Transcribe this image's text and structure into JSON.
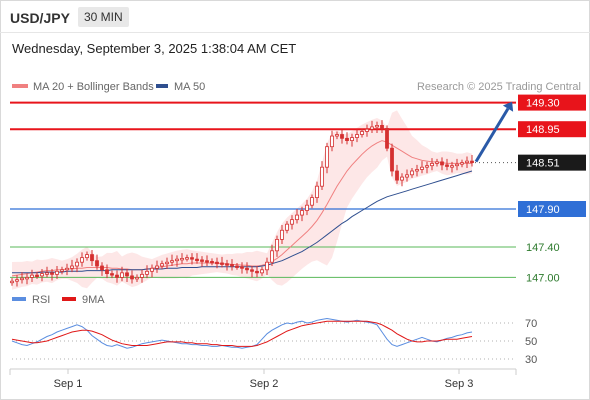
{
  "header": {
    "pair": "USD/JPY",
    "timeframe": "30 MIN",
    "datetime": "Wednesday, September 3, 2025 1:38:04 AM CET"
  },
  "legend": {
    "ma20_label": "MA 20 + Bollinger Bands",
    "ma50_label": "MA 50",
    "credit": "Research © 2025 Trading Central",
    "rsi_label": "RSI",
    "rsi_ma_label": "9MA"
  },
  "colors": {
    "resistance": "#e8141b",
    "support": "#2f6fd6",
    "support_green": "#59b85a",
    "current": "#1a1a1a",
    "ma20": "#f08080",
    "ma50": "#2f4f8f",
    "bollinger_fill": "#fde3e3",
    "candle": "#d43030",
    "arrow": "#2a5aa8",
    "rsi": "#5b8ee0",
    "rsi_ma": "#e01818"
  },
  "chart_data": [
    {
      "type": "candlestick",
      "name": "USD/JPY 30 MIN",
      "x_ticks": [
        "Sep 1",
        "Sep 2",
        "Sep 3"
      ],
      "ylim": [
        146.9,
        149.4
      ],
      "levels": [
        {
          "label": "149.30",
          "value": 149.3,
          "kind": "resistance"
        },
        {
          "label": "148.95",
          "value": 148.95,
          "kind": "resistance"
        },
        {
          "label": "148.51",
          "value": 148.51,
          "kind": "current"
        },
        {
          "label": "147.90",
          "value": 147.9,
          "kind": "support"
        },
        {
          "label": "147.40",
          "value": 147.4,
          "kind": "support-minor"
        },
        {
          "label": "147.00",
          "value": 147.0,
          "kind": "support-minor"
        }
      ],
      "price_series": [
        146.95,
        146.97,
        146.99,
        147.0,
        147.03,
        147.02,
        147.05,
        147.06,
        147.04,
        147.08,
        147.1,
        147.12,
        147.15,
        147.2,
        147.26,
        147.3,
        147.22,
        147.15,
        147.1,
        147.05,
        147.03,
        147.0,
        147.06,
        147.02,
        146.98,
        147.0,
        147.04,
        147.08,
        147.12,
        147.15,
        147.18,
        147.2,
        147.22,
        147.24,
        147.25,
        147.26,
        147.24,
        147.23,
        147.22,
        147.21,
        147.2,
        147.19,
        147.18,
        147.17,
        147.15,
        147.14,
        147.12,
        147.1,
        147.08,
        147.06,
        147.1,
        147.2,
        147.35,
        147.5,
        147.62,
        147.7,
        147.76,
        147.82,
        147.88,
        147.95,
        148.05,
        148.2,
        148.45,
        148.72,
        148.86,
        148.88,
        148.83,
        148.8,
        148.84,
        148.88,
        148.92,
        148.95,
        148.98,
        149.0,
        148.96,
        148.7,
        148.4,
        148.28,
        148.32,
        148.35,
        148.4,
        148.42,
        148.45,
        148.47,
        148.5,
        148.52,
        148.48,
        148.46,
        148.47,
        148.49,
        148.51,
        148.53,
        148.51
      ],
      "ma20_series": [
        147.02,
        147.03,
        147.04,
        147.05,
        147.06,
        147.07,
        147.08,
        147.09,
        147.09,
        147.1,
        147.1,
        147.11,
        147.11,
        147.12,
        147.12,
        147.13,
        147.13,
        147.13,
        147.13,
        147.13,
        147.12,
        147.12,
        147.11,
        147.11,
        147.1,
        147.1,
        147.1,
        147.11,
        147.12,
        147.13,
        147.14,
        147.15,
        147.16,
        147.17,
        147.18,
        147.18,
        147.19,
        147.19,
        147.19,
        147.19,
        147.19,
        147.19,
        147.18,
        147.18,
        147.17,
        147.17,
        147.16,
        147.16,
        147.15,
        147.15,
        147.16,
        147.18,
        147.21,
        147.25,
        147.3,
        147.36,
        147.42,
        147.48,
        147.54,
        147.6,
        147.67,
        147.75,
        147.85,
        147.96,
        148.08,
        148.2,
        148.3,
        148.4,
        148.48,
        148.55,
        148.62,
        148.68,
        148.73,
        148.77,
        148.8,
        148.78,
        148.74,
        148.7,
        148.66,
        148.62,
        148.58,
        148.56,
        148.54,
        148.53,
        148.52,
        148.52,
        148.51,
        148.5,
        148.5,
        148.5,
        148.5,
        148.5,
        148.5
      ],
      "ma50_series": [
        147.06,
        147.06,
        147.06,
        147.06,
        147.06,
        147.06,
        147.07,
        147.07,
        147.07,
        147.07,
        147.07,
        147.08,
        147.08,
        147.08,
        147.08,
        147.09,
        147.09,
        147.09,
        147.09,
        147.09,
        147.1,
        147.1,
        147.1,
        147.1,
        147.1,
        147.1,
        147.1,
        147.11,
        147.11,
        147.11,
        147.11,
        147.12,
        147.12,
        147.12,
        147.13,
        147.13,
        147.13,
        147.13,
        147.14,
        147.14,
        147.14,
        147.14,
        147.14,
        147.14,
        147.14,
        147.14,
        147.14,
        147.14,
        147.14,
        147.14,
        147.15,
        147.16,
        147.18,
        147.2,
        147.22,
        147.25,
        147.28,
        147.31,
        147.34,
        147.38,
        147.42,
        147.46,
        147.51,
        147.56,
        147.61,
        147.66,
        147.71,
        147.75,
        147.8,
        147.84,
        147.88,
        147.92,
        147.96,
        148.0,
        148.03,
        148.06,
        148.08,
        148.1,
        148.12,
        148.14,
        148.16,
        148.18,
        148.2,
        148.22,
        148.24,
        148.26,
        148.28,
        148.3,
        148.32,
        148.34,
        148.36,
        148.38,
        148.4
      ],
      "projection": [
        148.51,
        149.3
      ]
    },
    {
      "type": "line",
      "name": "RSI",
      "ylim": [
        20,
        80
      ],
      "y_ticks": [
        "70",
        "50",
        "30"
      ],
      "levels": [
        70,
        50,
        30
      ],
      "series": [
        {
          "name": "RSI",
          "values": [
            50,
            48,
            46,
            45,
            47,
            49,
            52,
            55,
            57,
            60,
            62,
            64,
            66,
            68,
            66,
            62,
            56,
            52,
            48,
            45,
            44,
            46,
            44,
            42,
            43,
            45,
            47,
            48,
            49,
            50,
            51,
            50,
            49,
            48,
            47,
            47,
            46,
            46,
            45,
            45,
            44,
            44,
            45,
            44,
            43,
            43,
            42,
            43,
            44,
            46,
            52,
            58,
            62,
            65,
            68,
            70,
            69,
            71,
            72,
            70,
            71,
            73,
            74,
            75,
            74,
            73,
            72,
            71,
            72,
            73,
            72,
            71,
            70,
            68,
            60,
            52,
            46,
            44,
            46,
            48,
            50,
            52,
            54,
            52,
            50,
            49,
            51,
            53,
            54,
            56,
            57,
            59,
            60
          ]
        },
        {
          "name": "9MA",
          "values": [
            52,
            51,
            50,
            49,
            48,
            48,
            49,
            50,
            52,
            54,
            56,
            58,
            60,
            61,
            62,
            62,
            61,
            59,
            57,
            54,
            51,
            49,
            47,
            46,
            45,
            45,
            45,
            45,
            46,
            47,
            48,
            49,
            49,
            49,
            49,
            48,
            48,
            47,
            47,
            47,
            46,
            46,
            45,
            45,
            45,
            44,
            44,
            44,
            44,
            45,
            47,
            49,
            52,
            55,
            58,
            61,
            63,
            65,
            67,
            68,
            69,
            70,
            71,
            72,
            72,
            72,
            72,
            72,
            72,
            72,
            72,
            72,
            71,
            70,
            68,
            65,
            62,
            58,
            55,
            52,
            50,
            49,
            49,
            50,
            50,
            50,
            51,
            52,
            52,
            52,
            53,
            54,
            55
          ]
        }
      ]
    }
  ]
}
